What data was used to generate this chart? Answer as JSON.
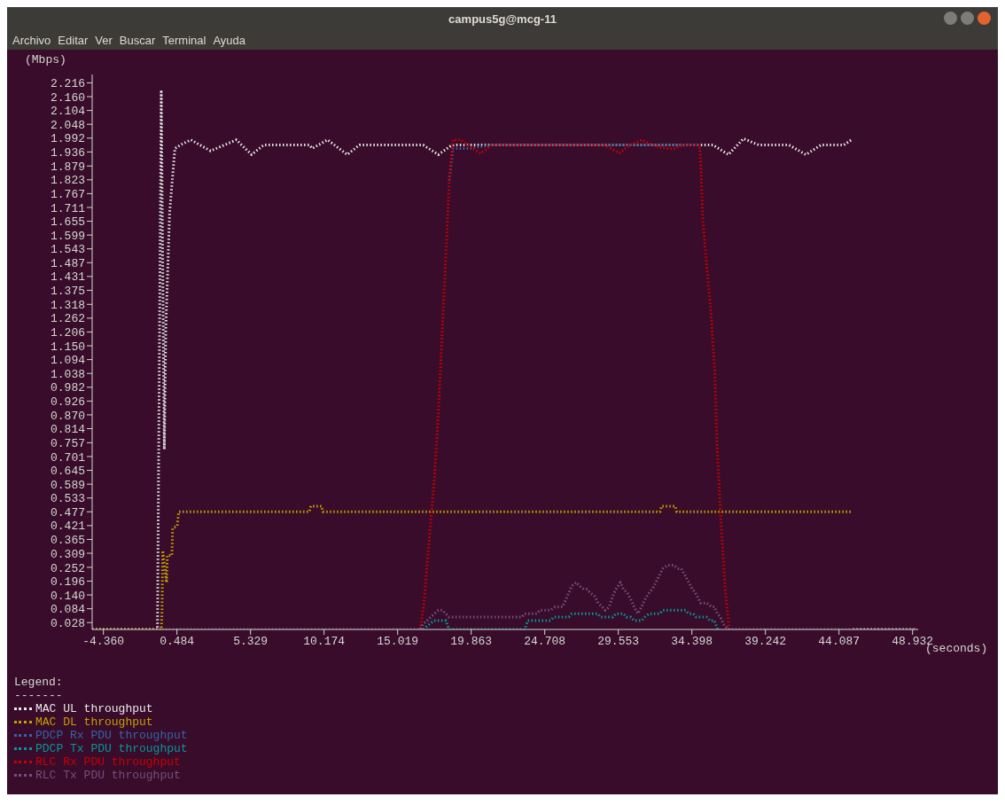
{
  "chart_data": {
    "type": "line",
    "title": "campus5g@mcg-11",
    "annotations": [
      "Archivo",
      "Editar",
      "Ver",
      "Buscar",
      "Terminal",
      "Ayuda"
    ],
    "ylabel": "(Mbps)",
    "xlabel": "(seconds)",
    "legend_title": "Legend:\n-------",
    "legend": "bottom left",
    "grid": false,
    "marker": "none",
    "line_style": "dotted",
    "xlim": [
      -5.1,
      49.3
    ],
    "ylim": [
      0,
      2.25
    ],
    "xticks": [
      {
        "value": -4.36,
        "label": "-4.360"
      },
      0.484,
      5.329,
      10.174,
      15.019,
      19.863,
      24.708,
      29.553,
      34.398,
      39.242,
      44.087,
      48.932
    ],
    "yticks": [
      0.028,
      0.084,
      {
        "value": 0.14,
        "label": "0.140"
      },
      0.196,
      0.252,
      0.309,
      0.365,
      0.421,
      0.477,
      0.533,
      0.589,
      0.645,
      0.701,
      0.757,
      0.814,
      {
        "value": 0.87,
        "label": "0.870"
      },
      0.926,
      0.982,
      1.038,
      1.094,
      {
        "value": 1.15,
        "label": "1.150"
      },
      1.206,
      1.262,
      1.318,
      1.375,
      1.431,
      1.487,
      1.543,
      1.599,
      1.655,
      1.711,
      1.767,
      1.823,
      1.879,
      1.936,
      1.992,
      2.048,
      2.104,
      {
        "value": 2.16,
        "label": "2.160"
      },
      2.216
    ],
    "series": [
      {
        "name": "MAC UL throughput",
        "color": "#e8e8e8",
        "x": [
          -5.1,
          -0.8,
          -0.55,
          -0.35,
          -0.25,
          0.0,
          0.35,
          0.7,
          1.4,
          2.7,
          4.4,
          5.4,
          6.2,
          9.2,
          9.4,
          10.4,
          11.7,
          12.5,
          16.7,
          17.7,
          18.6,
          35.8,
          36.8,
          37.8,
          38.8,
          40.8,
          41.9,
          42.9,
          44.4,
          44.9,
          44.95,
          45.0,
          49.2
        ],
        "values": [
          0,
          0,
          2.18,
          0.73,
          1.22,
          1.69,
          1.95,
          1.964,
          1.985,
          1.94,
          1.985,
          1.925,
          1.964,
          1.964,
          1.95,
          1.985,
          1.925,
          1.964,
          1.964,
          1.925,
          1.964,
          1.964,
          1.925,
          1.99,
          1.964,
          1.964,
          1.925,
          1.964,
          1.964,
          1.985,
          null,
          0,
          0
        ]
      },
      {
        "name": "MAC DL throughput",
        "color": "#c4a000",
        "x": [
          -5.1,
          -0.55,
          -0.5,
          -0.45,
          -0.2,
          -0.15,
          0.15,
          0.2,
          0.5,
          0.6,
          9.2,
          9.3,
          10.0,
          10.1,
          32.3,
          32.4,
          33.3,
          33.4,
          45.0
        ],
        "values": [
          0,
          0,
          0.07,
          0.32,
          0.19,
          0.3,
          0.3,
          0.41,
          0.42,
          0.477,
          0.477,
          0.5,
          0.5,
          0.477,
          0.477,
          0.5,
          0.5,
          0.477,
          0.477
        ]
      },
      {
        "name": "PDCP Rx PDU throughput",
        "color": "#3465a4",
        "x": [
          18.42,
          18.66,
          19.7,
          21.2,
          34.9
        ],
        "values": [
          1.82,
          1.95,
          1.95,
          1.964,
          1.964
        ]
      },
      {
        "name": "PDCP Tx PDU throughput",
        "color": "#06989a",
        "x": [
          16.7,
          17.4,
          18.2,
          18.4,
          23.39,
          23.59,
          25.09,
          25.29,
          26.29,
          26.49,
          28.19,
          28.39,
          29.19,
          29.39,
          29.89,
          30.09,
          30.39,
          30.59,
          31.09,
          31.29,
          31.59,
          32.29,
          32.49,
          33.99,
          34.19,
          34.49,
          34.69,
          35.38,
          35.58,
          35.88,
          36.1
        ],
        "values": [
          0,
          0.036,
          0.036,
          0,
          0,
          0.036,
          0.036,
          0.05,
          0.05,
          0.064,
          0.064,
          0.05,
          0.05,
          0.064,
          0.064,
          0.05,
          0.05,
          0.036,
          0.036,
          0.05,
          0.064,
          0.064,
          0.078,
          0.078,
          0.064,
          0.064,
          0.05,
          0.05,
          0.036,
          0.036,
          0
        ]
      },
      {
        "name": "RLC Rx PDU throughput",
        "color": "#cc0000",
        "x": [
          16.5,
          16.74,
          16.98,
          17.22,
          17.46,
          17.7,
          17.94,
          18.18,
          18.42,
          18.66,
          19.2,
          19.6,
          20.5,
          21.2,
          28.7,
          29.6,
          30.3,
          31.1,
          31.8,
          32.7,
          33.3,
          33.8,
          34.9,
          35.0,
          35.1,
          35.35,
          35.65,
          35.9,
          36.05,
          36.3,
          36.6,
          36.85
        ],
        "values": [
          0,
          0.1,
          0.28,
          0.45,
          0.63,
          0.88,
          1.19,
          1.5,
          1.82,
          1.985,
          1.985,
          1.964,
          1.93,
          1.964,
          1.964,
          1.93,
          1.964,
          1.985,
          1.964,
          1.95,
          1.95,
          1.964,
          1.964,
          1.87,
          1.68,
          1.49,
          1.29,
          1.05,
          0.76,
          0.45,
          0.16,
          0
        ]
      },
      {
        "name": "RLC Tx PDU throughput",
        "color": "#75507b",
        "x": [
          -0.5,
          16.5,
          16.7,
          17.2,
          17.44,
          17.7,
          17.96,
          18.2,
          18.4,
          23.19,
          23.39,
          24.19,
          24.39,
          25.09,
          25.39,
          25.89,
          26.09,
          26.29,
          26.49,
          26.79,
          26.99,
          27.29,
          27.49,
          27.69,
          27.99,
          28.23,
          28.49,
          28.69,
          28.95,
          29.19,
          29.39,
          29.69,
          29.89,
          30.15,
          30.39,
          30.59,
          30.83,
          31.09,
          31.29,
          31.59,
          31.79,
          32.03,
          32.25,
          32.49,
          32.79,
          33.19,
          33.49,
          33.69,
          33.95,
          34.19,
          34.43,
          34.63,
          34.98,
          35.38,
          35.68,
          35.88,
          36.08,
          36.28,
          36.48,
          36.78,
          49.2
        ],
        "values": [
          0,
          0,
          0.022,
          0.05,
          0.064,
          0.078,
          0.078,
          0.064,
          0.05,
          0.05,
          0.064,
          0.064,
          0.078,
          0.078,
          0.092,
          0.092,
          0.12,
          0.148,
          0.177,
          0.191,
          0.177,
          0.163,
          0.163,
          0.149,
          0.135,
          0.107,
          0.092,
          0.078,
          0.092,
          0.135,
          0.163,
          0.191,
          0.163,
          0.149,
          0.12,
          0.092,
          0.064,
          0.092,
          0.12,
          0.149,
          0.163,
          0.191,
          0.219,
          0.247,
          0.261,
          0.261,
          0.247,
          0.247,
          0.219,
          0.191,
          0.163,
          0.149,
          0.107,
          0.107,
          0.092,
          0.092,
          0.064,
          0.05,
          0.022,
          0,
          0
        ]
      }
    ]
  }
}
